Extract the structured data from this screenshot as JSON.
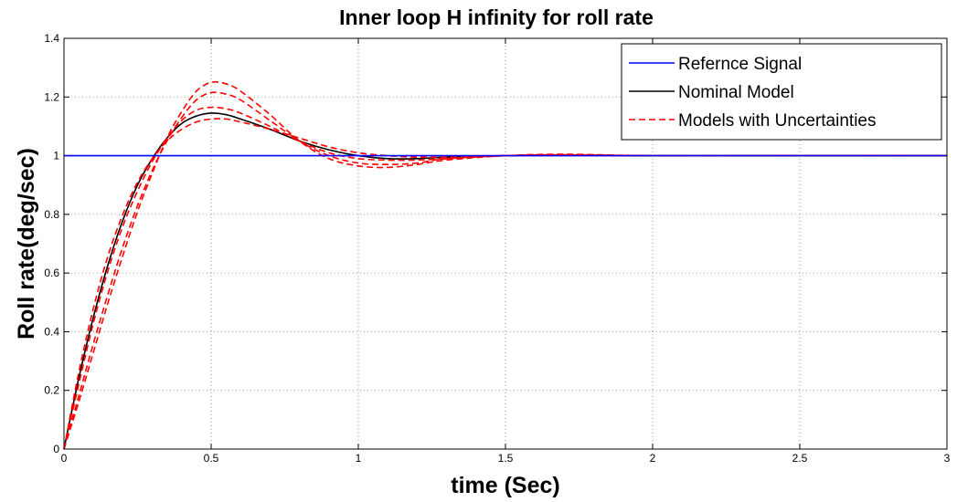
{
  "chart_data": {
    "type": "line",
    "title": "Inner loop H infinity for roll rate",
    "xlabel": "time (Sec)",
    "ylabel": "Roll rate(deg/sec)",
    "xlim": [
      0,
      3
    ],
    "ylim": [
      0,
      1.4
    ],
    "xticks": [
      0,
      0.5,
      1,
      1.5,
      2,
      2.5,
      3
    ],
    "xtick_labels": [
      "0",
      "0.5",
      "1",
      "1.5",
      "2",
      "2.5",
      "3"
    ],
    "yticks": [
      0,
      0.2,
      0.4,
      0.6,
      0.8,
      1,
      1.2,
      1.4
    ],
    "ytick_labels": [
      "0",
      "0.2",
      "0.4",
      "0.6",
      "0.8",
      "1",
      "1.2",
      "1.4"
    ],
    "grid": true,
    "legend_position": "top-right",
    "legend": [
      {
        "label": "Refernce Signal",
        "color": "#0000ff",
        "style": "solid"
      },
      {
        "label": "Nominal Model",
        "color": "#000000",
        "style": "solid"
      },
      {
        "label": "Models with Uncertainties",
        "color": "#ff0000",
        "style": "dashed"
      }
    ],
    "series": [
      {
        "name": "Refernce Signal",
        "color": "#0000ff",
        "style": "solid",
        "x": [
          0,
          3
        ],
        "y": [
          1,
          1
        ]
      },
      {
        "name": "Nominal Model",
        "color": "#000000",
        "style": "solid",
        "x": [
          0,
          0.05,
          0.1,
          0.15,
          0.2,
          0.25,
          0.3,
          0.35,
          0.4,
          0.45,
          0.5,
          0.55,
          0.6,
          0.7,
          0.8,
          0.9,
          1.0,
          1.1,
          1.2,
          1.3,
          1.5,
          1.7,
          2.0,
          2.5,
          3.0
        ],
        "y": [
          0,
          0.24,
          0.45,
          0.63,
          0.78,
          0.9,
          0.99,
          1.06,
          1.11,
          1.135,
          1.145,
          1.14,
          1.125,
          1.09,
          1.05,
          1.02,
          1.0,
          0.99,
          0.99,
          0.995,
          1.0,
          1.002,
          1.0,
          1.0,
          1.0
        ]
      },
      {
        "name": "Models with Uncertainties",
        "color": "#ff0000",
        "style": "dashed",
        "x": [
          0,
          0.05,
          0.1,
          0.15,
          0.2,
          0.25,
          0.3,
          0.35,
          0.4,
          0.45,
          0.5,
          0.55,
          0.6,
          0.7,
          0.8,
          0.9,
          1.0,
          1.1,
          1.2,
          1.3,
          1.5,
          1.7,
          2.0,
          2.5,
          3.0
        ],
        "y": [
          0,
          0.16,
          0.33,
          0.5,
          0.66,
          0.81,
          0.94,
          1.06,
          1.15,
          1.22,
          1.25,
          1.245,
          1.22,
          1.14,
          1.05,
          0.99,
          0.965,
          0.96,
          0.97,
          0.985,
          1.0,
          1.005,
          1.0,
          1.0,
          1.0
        ]
      },
      {
        "name": "Models with Uncertainties",
        "color": "#ff0000",
        "style": "dashed",
        "x": [
          0,
          0.05,
          0.1,
          0.15,
          0.2,
          0.25,
          0.3,
          0.35,
          0.4,
          0.45,
          0.5,
          0.55,
          0.6,
          0.7,
          0.8,
          0.9,
          1.0,
          1.1,
          1.2,
          1.3,
          1.5,
          1.7,
          2.0,
          2.5,
          3.0
        ],
        "y": [
          0,
          0.18,
          0.36,
          0.53,
          0.69,
          0.83,
          0.95,
          1.05,
          1.13,
          1.19,
          1.215,
          1.21,
          1.19,
          1.12,
          1.05,
          1.0,
          0.975,
          0.97,
          0.975,
          0.99,
          1.0,
          1.003,
          1.0,
          1.0,
          1.0
        ]
      },
      {
        "name": "Models with Uncertainties",
        "color": "#ff0000",
        "style": "dashed",
        "x": [
          0,
          0.05,
          0.1,
          0.15,
          0.2,
          0.25,
          0.3,
          0.35,
          0.4,
          0.45,
          0.5,
          0.55,
          0.6,
          0.7,
          0.8,
          0.9,
          1.0,
          1.1,
          1.2,
          1.3,
          1.5,
          1.7,
          2.0,
          2.5,
          3.0
        ],
        "y": [
          0,
          0.22,
          0.43,
          0.61,
          0.76,
          0.88,
          0.98,
          1.06,
          1.12,
          1.155,
          1.165,
          1.16,
          1.145,
          1.1,
          1.05,
          1.01,
          0.99,
          0.985,
          0.985,
          0.99,
          1.0,
          1.002,
          1.0,
          1.0,
          1.0
        ]
      },
      {
        "name": "Models with Uncertainties",
        "color": "#ff0000",
        "style": "dashed",
        "x": [
          0,
          0.05,
          0.1,
          0.15,
          0.2,
          0.25,
          0.3,
          0.35,
          0.4,
          0.45,
          0.5,
          0.55,
          0.6,
          0.7,
          0.8,
          0.9,
          1.0,
          1.1,
          1.2,
          1.3,
          1.5,
          1.7,
          2.0,
          2.5,
          3.0
        ],
        "y": [
          0,
          0.26,
          0.48,
          0.66,
          0.8,
          0.91,
          0.99,
          1.05,
          1.09,
          1.115,
          1.125,
          1.125,
          1.115,
          1.09,
          1.06,
          1.03,
          1.01,
          1.0,
          0.995,
          0.995,
          1.0,
          1.001,
          1.0,
          1.0,
          1.0
        ]
      }
    ]
  }
}
